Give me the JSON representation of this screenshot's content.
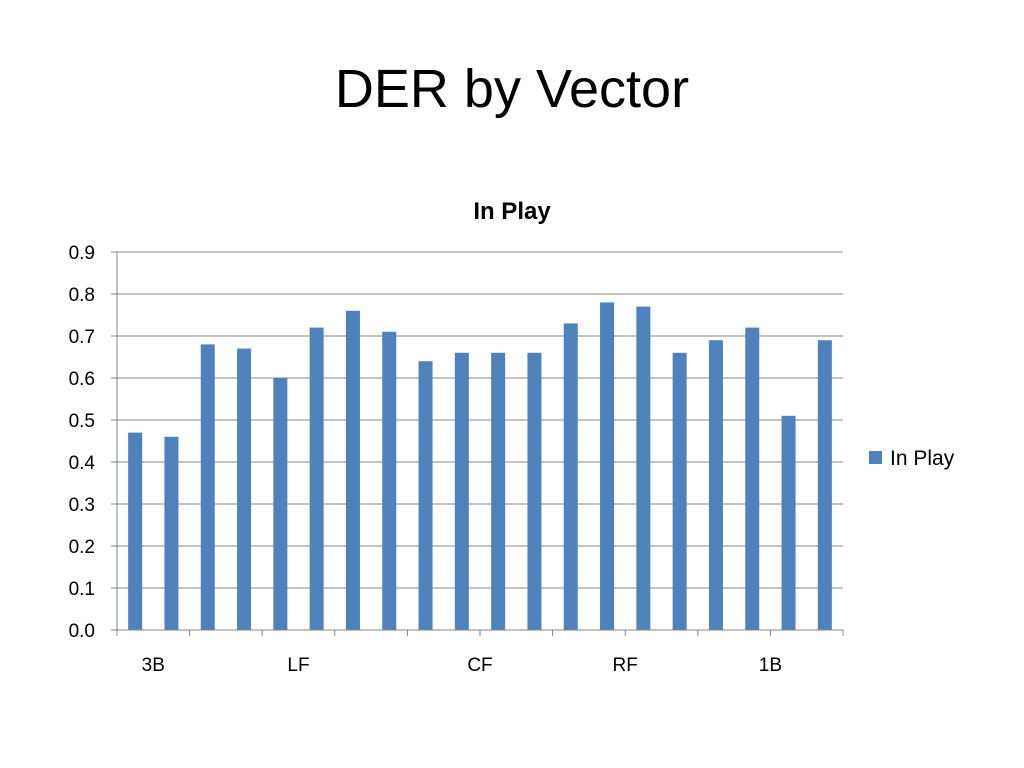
{
  "slide": {
    "title": "DER by Vector"
  },
  "chart_data": {
    "type": "bar",
    "title": "In Play",
    "xlabel": "",
    "ylabel": "",
    "ylim": [
      0,
      0.9
    ],
    "yticks": [
      "0.0",
      "0.1",
      "0.2",
      "0.3",
      "0.4",
      "0.5",
      "0.6",
      "0.7",
      "0.8",
      "0.9"
    ],
    "categories": [
      "",
      "3B",
      "",
      "",
      "",
      "LF",
      "",
      "",
      "",
      "",
      "CF",
      "",
      "",
      "",
      "RF",
      "",
      "",
      "",
      "1B",
      ""
    ],
    "series": [
      {
        "name": "In Play",
        "color": "#4F81BD",
        "values": [
          0.47,
          0.46,
          0.68,
          0.67,
          0.6,
          0.72,
          0.76,
          0.71,
          0.64,
          0.66,
          0.66,
          0.66,
          0.73,
          0.78,
          0.77,
          0.66,
          0.69,
          0.72,
          0.51,
          0.69
        ]
      }
    ],
    "grid": true,
    "legend_position": "right"
  }
}
